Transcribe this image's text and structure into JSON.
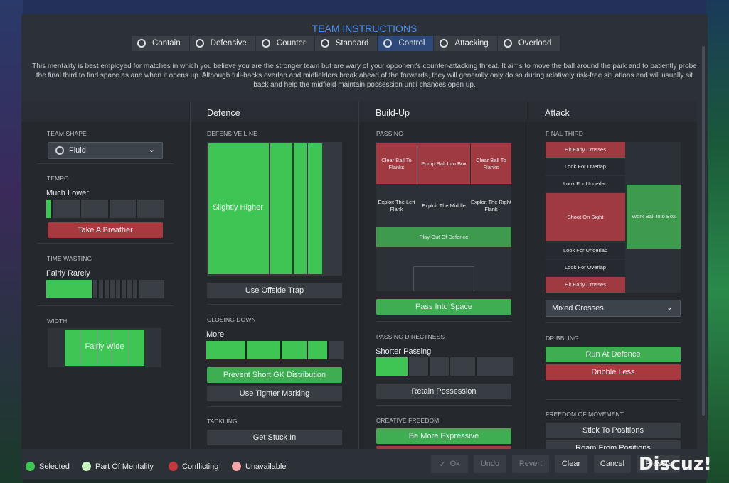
{
  "title": "TEAM INSTRUCTIONS",
  "tabs": [
    "Contain",
    "Defensive",
    "Counter",
    "Standard",
    "Control",
    "Attacking",
    "Overload"
  ],
  "active_tab": "Control",
  "description": "This mentality is best employed for matches in which you believe you are the stronger team but are wary of your opponent's counter-attacking threat. It aims to move the ball around the park and to patiently probe the final third to find space as and when it opens up. Although full-backs overlap and midfielders break ahead of the forwards, they will generally only do so during relatively risk-free situations and will usually sit back and help the midfield maintain possession until chances open up.",
  "shape": {
    "label": "TEAM SHAPE",
    "value": "Fluid"
  },
  "tempo": {
    "label": "TEMPO",
    "value": "Much Lower",
    "button": "Take A Breather",
    "level": 0.05
  },
  "time_wasting": {
    "label": "TIME WASTING",
    "value": "Fairly Rarely",
    "level": 0.35
  },
  "width": {
    "label": "WIDTH",
    "value": "Fairly Wide"
  },
  "defence": {
    "head": "Defence",
    "line_label": "DEFENSIVE LINE",
    "line_value": "Slightly Higher",
    "offside": "Use Offside Trap",
    "closing_label": "CLOSING DOWN",
    "closing_value": "More",
    "gk": "Prevent Short GK Distribution",
    "marking": "Use Tighter Marking",
    "tackling_label": "TACKLING",
    "tackling": "Get Stuck In"
  },
  "buildup": {
    "head": "Build-Up",
    "passing_label": "PASSING",
    "cells": {
      "cbl": "Clear Ball To Flanks",
      "pbb": "Pump Ball Into Box",
      "cbr": "Clear Ball To Flanks",
      "el": "Exploit The Left Flank",
      "em": "Exploit The Middle",
      "er": "Exploit The Right Flank",
      "pod": "Play Out Of Defence"
    },
    "space": "Pass Into Space",
    "dir_label": "PASSING DIRECTNESS",
    "dir_value": "Shorter Passing",
    "retain": "Retain Possession",
    "creative_label": "CREATIVE FREEDOM",
    "expressive": "Be More Expressive"
  },
  "attack": {
    "head": "Attack",
    "final_label": "FINAL THIRD",
    "cells": {
      "hec1": "Hit Early Crosses",
      "lfo1": "Look For Overlap",
      "lfu1": "Look For Underlap",
      "sos": "Shoot On Sight",
      "wbb": "Work Ball Into Box",
      "lfu2": "Look For Underlap",
      "lfo2": "Look For Overlap",
      "hec2": "Hit Early Crosses"
    },
    "crosses": "Mixed Crosses",
    "dribbling_label": "DRIBBLING",
    "run": "Run At Defence",
    "dribble_less": "Dribble Less",
    "fom_label": "FREEDOM OF MOVEMENT",
    "stick": "Stick To Positions",
    "roam": "Roam From Positions"
  },
  "legend": [
    "Selected",
    "Part Of Mentality",
    "Conflicting",
    "Unavailable"
  ],
  "legend_colors": [
    "#3fc553",
    "#c9f5c0",
    "#c0393f",
    "#f2a6a8"
  ],
  "footer": {
    "ok": "Ok",
    "undo": "Undo",
    "revert": "Revert",
    "clear": "Clear",
    "cancel": "Cancel",
    "presets": "Presets"
  },
  "watermark": "Discuz!"
}
